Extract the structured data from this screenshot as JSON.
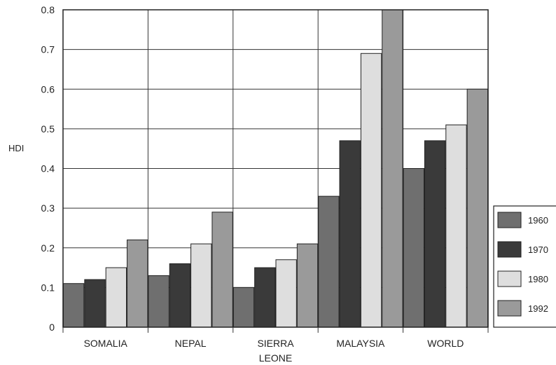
{
  "chart_data": {
    "type": "bar",
    "title": "",
    "xlabel": "",
    "ylabel": "HDI",
    "ylim": [
      0,
      0.8
    ],
    "yticks": [
      0,
      0.1,
      0.2,
      0.3,
      0.4,
      0.5,
      0.6,
      0.7,
      0.8
    ],
    "ytick_labels": [
      "0",
      "0.1",
      "0.2",
      "0.3",
      "0.4",
      "0.5",
      "0.6",
      "0.7",
      "0.8"
    ],
    "grid": true,
    "legend_position": "right",
    "categories": [
      {
        "lines": [
          "SOMALIA"
        ]
      },
      {
        "lines": [
          "NEPAL"
        ]
      },
      {
        "lines": [
          "SIERRA",
          "LEONE"
        ]
      },
      {
        "lines": [
          "MALAYSIA"
        ]
      },
      {
        "lines": [
          "WORLD"
        ]
      }
    ],
    "series": [
      {
        "name": "1960",
        "color": "#6f6f6f",
        "values": [
          0.11,
          0.13,
          0.1,
          0.33,
          0.4
        ]
      },
      {
        "name": "1970",
        "color": "#3a3a3a",
        "values": [
          0.12,
          0.16,
          0.15,
          0.47,
          0.47
        ]
      },
      {
        "name": "1980",
        "color": "#dedede",
        "values": [
          0.15,
          0.21,
          0.17,
          0.69,
          0.51
        ]
      },
      {
        "name": "1992",
        "color": "#9a9a9a",
        "values": [
          0.22,
          0.29,
          0.21,
          0.8,
          0.6
        ]
      }
    ]
  }
}
